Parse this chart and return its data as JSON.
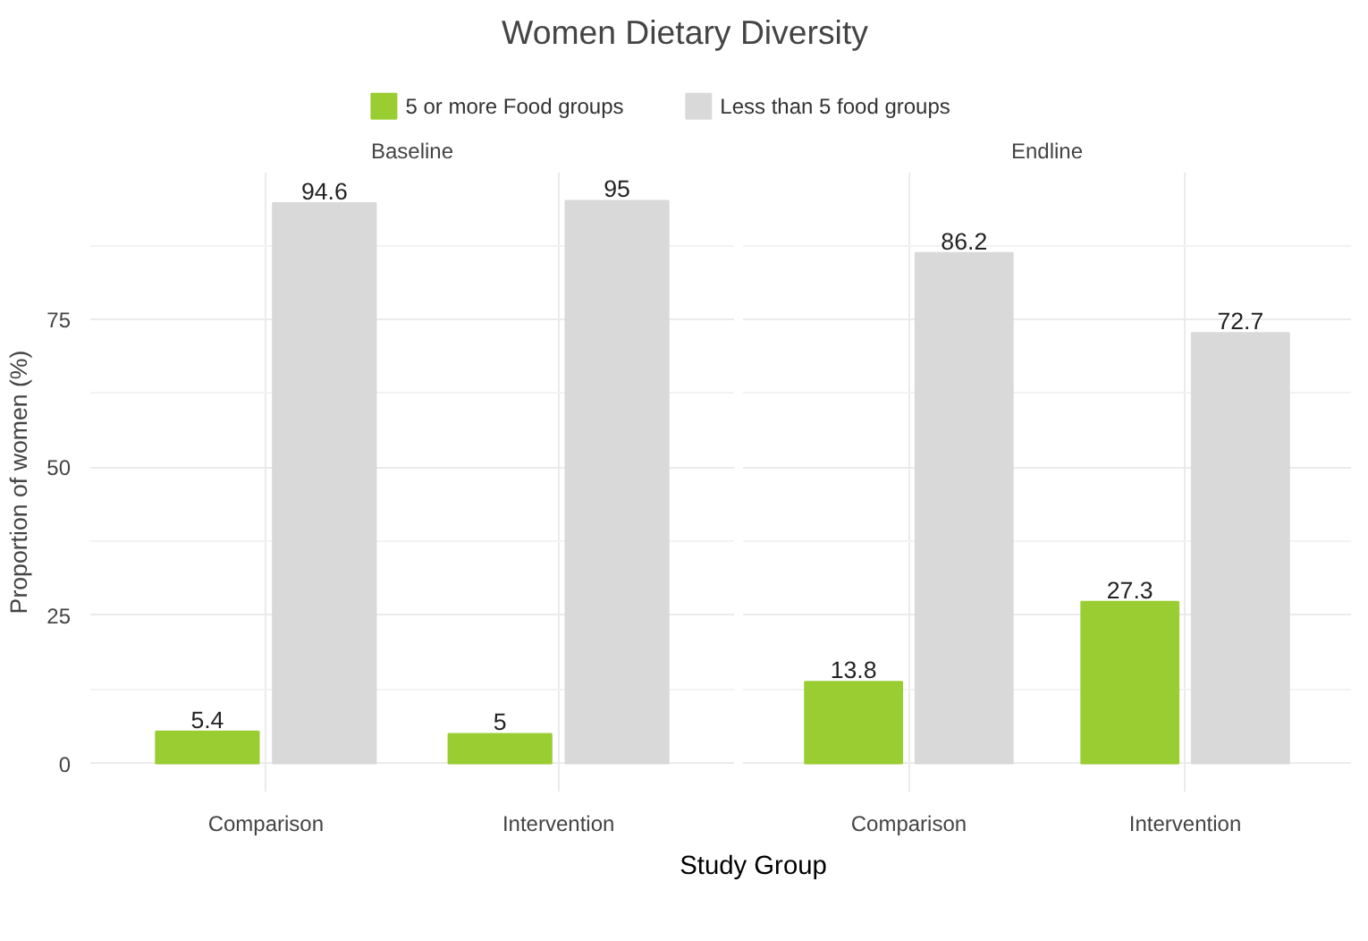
{
  "chart_data": [
    {
      "type": "bar",
      "title": "Women Dietary Diversity",
      "subtitle": "Baseline",
      "xlabel": "Study Group",
      "ylabel": "Proportion of women (%)",
      "categories": [
        "Comparison",
        "Intervention"
      ],
      "series": [
        {
          "name": "5 or more Food groups",
          "color": "#9acd32",
          "values": [
            5.4,
            5
          ]
        },
        {
          "name": "Less than 5 food groups",
          "color": "#d9d9d9",
          "values": [
            94.6,
            95
          ]
        }
      ],
      "ylim": [
        -4.75,
        99.75
      ],
      "yticks": [
        0,
        25,
        50,
        75
      ],
      "grid": true,
      "legend": "top",
      "data_labels": true
    },
    {
      "type": "bar",
      "subtitle": "Endline",
      "categories": [
        "Comparison",
        "Intervention"
      ],
      "series": [
        {
          "color": "#9acd32",
          "values": [
            13.8,
            27.3
          ]
        },
        {
          "color": "#d9d9d9",
          "values": [
            86.2,
            72.7
          ]
        }
      ],
      "ylim": [
        -4.75,
        99.75
      ],
      "yticks": [
        0,
        25,
        50,
        75
      ],
      "grid": true,
      "tick_labels": "x",
      "data_labels": true
    }
  ]
}
